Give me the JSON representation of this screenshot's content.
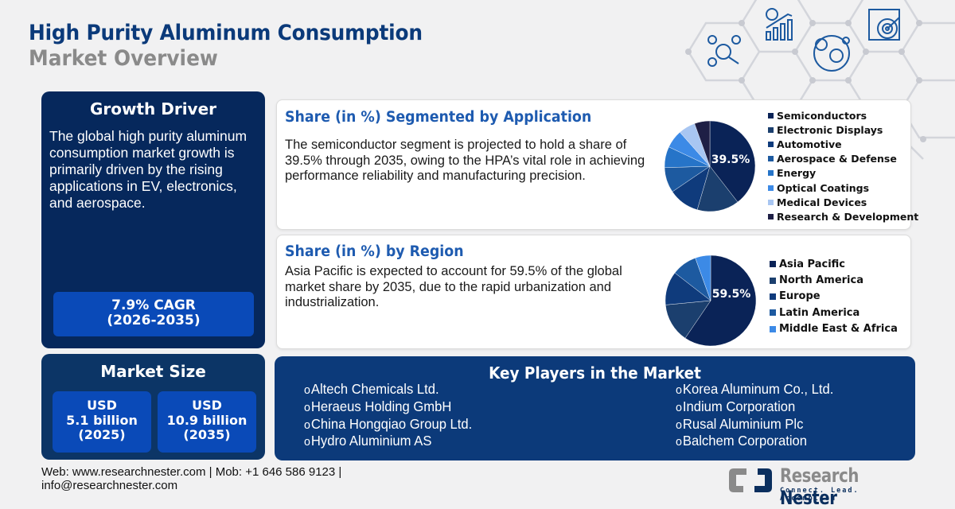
{
  "header": {
    "title_line1": "High Purity Aluminum Consumption",
    "title_line2": "Market Overview",
    "decorative_icons": [
      "network-analysis-icon",
      "growth-chart-icon",
      "global-market-icon",
      "target-clipboard-icon"
    ]
  },
  "growth_driver": {
    "title": "Growth Driver",
    "text": "The global high purity aluminum consumption market growth is primarily driven by the rising applications in EV, electronics, and aerospace.",
    "cagr_line1": "7.9% CAGR",
    "cagr_line2": "(2026-2035)"
  },
  "market_size": {
    "title": "Market Size",
    "boxes": [
      {
        "currency": "USD",
        "value": "5.1 billion",
        "year": "(2025)"
      },
      {
        "currency": "USD",
        "value": "10.9 billion",
        "year": "(2035)"
      }
    ]
  },
  "application_section": {
    "title": "Share (in %) Segmented by Application",
    "text": "The semiconductor segment is projected to hold a share of 39.5% through 2035, owing to the HPA’s vital role in achieving performance reliability and manufacturing precision.",
    "highlight_label": "39.5%"
  },
  "region_section": {
    "title": "Share (in %) by Region",
    "text": "Asia Pacific is expected to account for 59.5% of the global market share by 2035, due to the rapid urbanization and industrialization.",
    "highlight_label": "59.5%"
  },
  "chart_data": [
    {
      "type": "pie",
      "title": "Share (in %) Segmented by Application",
      "categories": [
        "Semiconductors",
        "Electronic Displays",
        "Automotive",
        "Aerospace & Defense",
        "Energy",
        "Optical Coatings",
        "Medical Devices",
        "Research & Development"
      ],
      "values": [
        39.5,
        15.0,
        11.0,
        9.0,
        7.5,
        6.5,
        6.0,
        5.5
      ],
      "colors": [
        "#0a2357",
        "#1b3f6e",
        "#0f3b7c",
        "#1d5aa0",
        "#2674c8",
        "#3c8ae6",
        "#a8c6f2",
        "#1e1f45"
      ],
      "annotations": [
        "39.5%"
      ],
      "legend_position": "right"
    },
    {
      "type": "pie",
      "title": "Share (in %) by Region",
      "categories": [
        "Asia Pacific",
        "North America",
        "Europe",
        "Latin America",
        "Middle East & Africa"
      ],
      "values": [
        59.5,
        14.0,
        12.0,
        9.0,
        5.5
      ],
      "colors": [
        "#0a2357",
        "#1b3f6e",
        "#0f3b7c",
        "#1d5aa0",
        "#3c8ae6"
      ],
      "annotations": [
        "59.5%"
      ],
      "legend_position": "right"
    }
  ],
  "key_players": {
    "title": "Key Players in the Market",
    "left": [
      "Altech Chemicals Ltd.",
      "Heraeus Holding GmbH",
      "China Hongqiao Group Ltd.",
      "Hydro Aluminium AS"
    ],
    "right": [
      "Korea Aluminum Co., Ltd.",
      "Indium Corporation",
      "Rusal Aluminium Plc",
      "Balchem Corporation"
    ]
  },
  "footer": {
    "line1": "Web: www.researchnester.com | Mob: +1 646 586 9123 |",
    "line2": "info@researchnester.com"
  },
  "logo": {
    "name_part1": "Research",
    "name_part2": "Nester",
    "tagline": "Connect. Lead. Accomplish"
  },
  "colors": {
    "primary_navy": "#06285c",
    "accent_blue": "#0a4ab8",
    "heading_blue": "#1e5bb0",
    "title_blue": "#0b3a7a",
    "subtitle_gray": "#8a8a8a",
    "background": "#f1f1f2"
  }
}
